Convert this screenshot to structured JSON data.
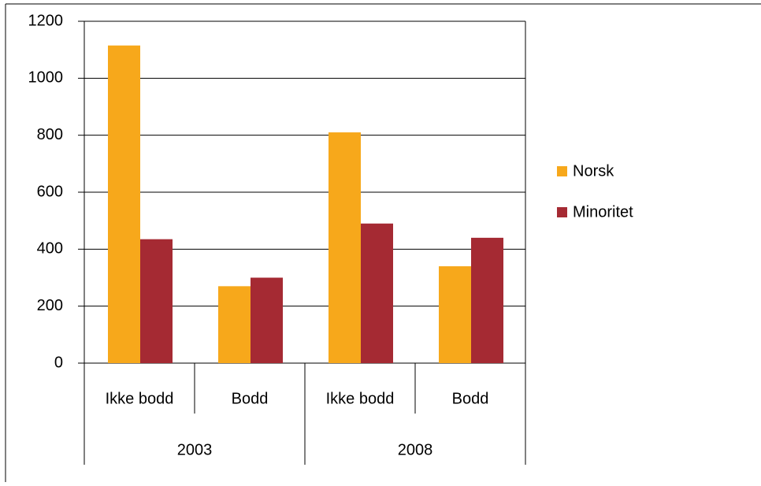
{
  "chart_data": {
    "type": "bar",
    "categories": [
      "Ikke bodd",
      "Bodd",
      "Ikke bodd",
      "Bodd"
    ],
    "groups": [
      "2003",
      "2008"
    ],
    "series": [
      {
        "name": "Norsk",
        "color": "#f7a81b",
        "values": [
          1115,
          270,
          810,
          340
        ]
      },
      {
        "name": "Minoritet",
        "color": "#a52a33",
        "values": [
          435,
          300,
          490,
          440
        ]
      }
    ],
    "ylim": [
      0,
      1200
    ],
    "yticks": [
      0,
      200,
      400,
      600,
      800,
      1000,
      1200
    ],
    "grid": true,
    "legend": "right"
  }
}
